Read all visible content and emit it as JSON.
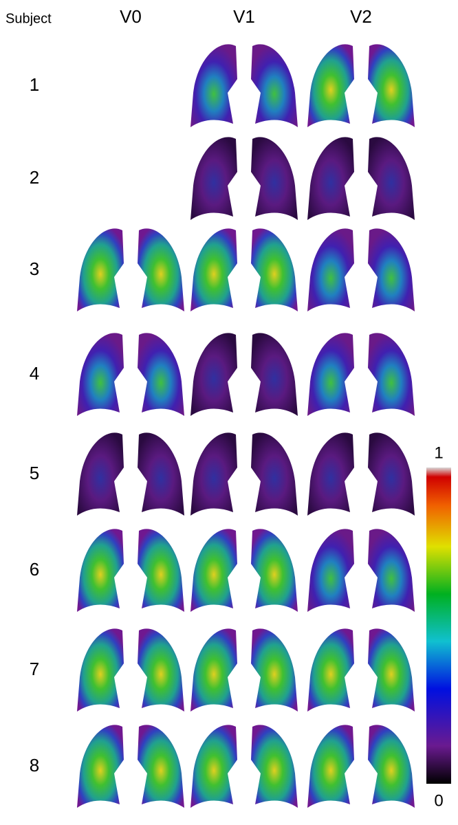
{
  "header": {
    "row_label": "Subject",
    "columns": [
      "V0",
      "V1",
      "V2"
    ]
  },
  "rows": [
    "1",
    "2",
    "3",
    "4",
    "5",
    "6",
    "7",
    "8"
  ],
  "colorbar": {
    "max_label": "1",
    "min_label": "0"
  }
}
